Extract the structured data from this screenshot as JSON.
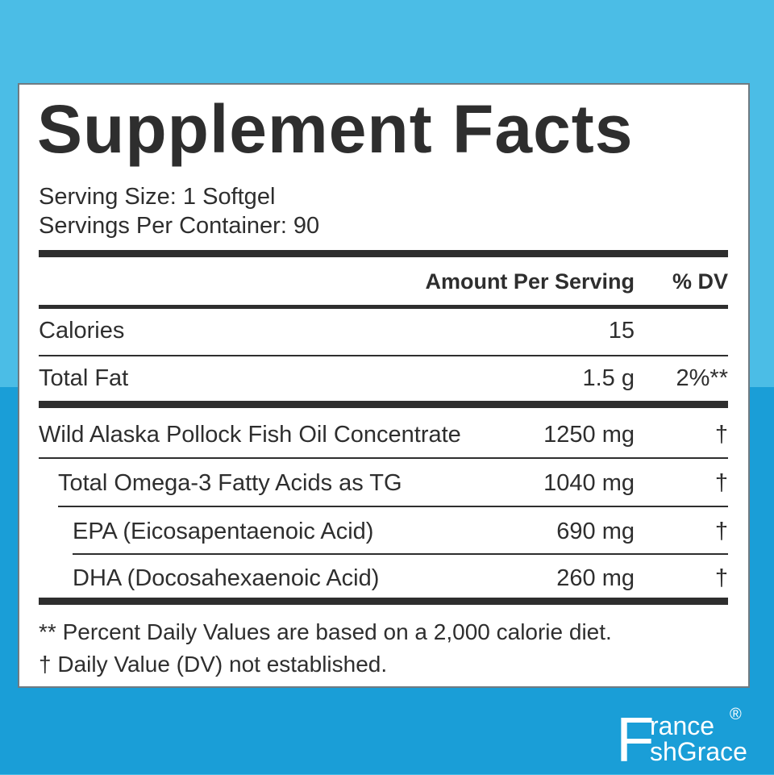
{
  "header": {
    "title": "Supplement Facts",
    "serving_size": "Serving Size: 1 Softgel",
    "servings_per_container": "Servings Per Container: 90"
  },
  "table": {
    "columns": [
      "Amount Per Serving",
      "% DV"
    ],
    "rows": [
      {
        "name": "Calories",
        "amount": "15"
      },
      {
        "name": "Total Fat",
        "amount": "1.5 g",
        "dv": "2%**"
      },
      {
        "name": "Wild Alaska Pollock Fish Oil Concentrate",
        "amount": "1250 mg",
        "dv": "†"
      },
      {
        "name": "Total Omega-3 Fatty Acids as TG",
        "amount": "1040 mg",
        "dv": "†"
      },
      {
        "name": "EPA (Eicosapentaenoic Acid)",
        "amount": "690 mg",
        "dv": "†"
      },
      {
        "name": "DHA (Docosahexaenoic Acid)",
        "amount": "260 mg",
        "dv": "†"
      }
    ]
  },
  "footnotes": [
    "** Percent Daily Values are based on a 2,000 calorie diet.",
    "†  Daily Value (DV) not established."
  ],
  "logo": {
    "letter": "F",
    "line1": "rance",
    "line2": "shGrace",
    "mark": "®"
  }
}
